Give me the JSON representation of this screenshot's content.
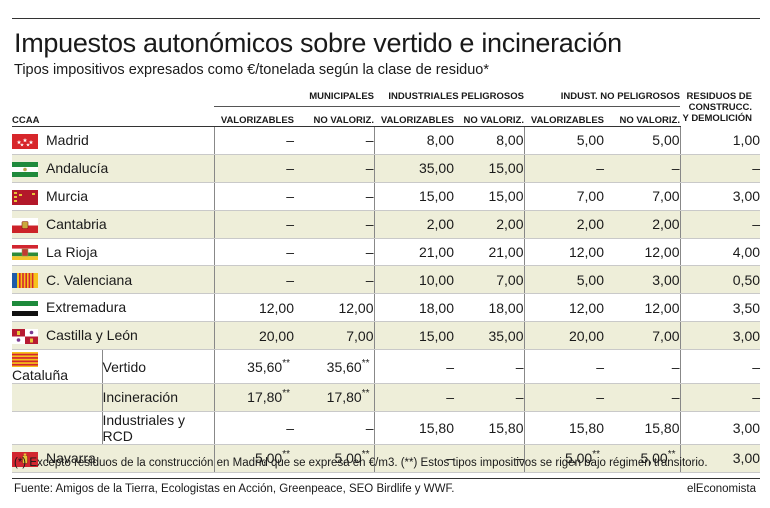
{
  "title": "Impuestos autonómicos sobre vertido e incineración",
  "subtitle": "Tipos impositivos expresados como €/tonelada según la clase de residuo*",
  "header": {
    "ccaa": "CCAA",
    "groups": {
      "municipales": "MUNICIPALES",
      "industriales_peligrosos": "INDUSTRIALES PELIGROSOS",
      "indust_no_peligrosos": "INDUST. NO PELIGROSOS",
      "residuos_l1": "RESIDUOS DE",
      "residuos_l2": "CONSTRUCC.",
      "residuos_l3": "Y DEMOLICIÓN"
    },
    "cols": {
      "valorizables": "VALORIZABLES",
      "no_valoriz": "NO VALORIZ."
    }
  },
  "rows": [
    {
      "name": "Madrid",
      "flag": "madrid",
      "values": [
        "–",
        "–",
        "8,00",
        "8,00",
        "5,00",
        "5,00",
        "1,00"
      ]
    },
    {
      "name": "Andalucía",
      "flag": "andalucia",
      "values": [
        "–",
        "–",
        "35,00",
        "15,00",
        "–",
        "–",
        "–"
      ]
    },
    {
      "name": "Murcia",
      "flag": "murcia",
      "values": [
        "–",
        "–",
        "15,00",
        "15,00",
        "7,00",
        "7,00",
        "3,00"
      ]
    },
    {
      "name": "Cantabria",
      "flag": "cantabria",
      "values": [
        "–",
        "–",
        "2,00",
        "2,00",
        "2,00",
        "2,00",
        "–"
      ]
    },
    {
      "name": "La Rioja",
      "flag": "larioja",
      "values": [
        "–",
        "–",
        "21,00",
        "21,00",
        "12,00",
        "12,00",
        "4,00"
      ]
    },
    {
      "name": "C. Valenciana",
      "flag": "valencia",
      "values": [
        "–",
        "–",
        "10,00",
        "7,00",
        "5,00",
        "3,00",
        "0,50"
      ]
    },
    {
      "name": "Extremadura",
      "flag": "extremadura",
      "values": [
        "12,00",
        "12,00",
        "18,00",
        "18,00",
        "12,00",
        "12,00",
        "3,50"
      ]
    },
    {
      "name": "Castilla y León",
      "flag": "castilla",
      "values": [
        "20,00",
        "7,00",
        "15,00",
        "35,00",
        "20,00",
        "7,00",
        "3,00"
      ]
    },
    {
      "name": "Cataluña",
      "flag": "cataluna",
      "sub": "Vertido",
      "values": [
        "35,60",
        "35,60",
        "–",
        "–",
        "–",
        "–",
        "–"
      ],
      "marks": [
        "**",
        "**",
        "",
        "",
        "",
        "",
        ""
      ]
    },
    {
      "name": "",
      "flag": "",
      "sub": "Incineración",
      "values": [
        "17,80",
        "17,80",
        "–",
        "–",
        "–",
        "–",
        "–"
      ],
      "marks": [
        "**",
        "**",
        "",
        "",
        "",
        "",
        ""
      ]
    },
    {
      "name": "",
      "flag": "",
      "sub": "Industriales y RCD",
      "values": [
        "–",
        "–",
        "15,80",
        "15,80",
        "15,80",
        "15,80",
        "3,00"
      ]
    },
    {
      "name": "Navarra",
      "flag": "navarra",
      "values": [
        "5,00",
        "5,00",
        "–",
        "–",
        "5,00",
        "5,00",
        "3,00"
      ],
      "marks": [
        "**",
        "**",
        "",
        "",
        "**",
        "**",
        ""
      ]
    }
  ],
  "note": "(*) Excepto residuos de la construcción en Madrid que se expresa en €/m3. (**) Estos tipos impositivos se rigen bajo régimen transitorio.",
  "source": "Fuente: Amigos de la Tierra, Ecologistas en Acción, Greenpeace, SEO Birdlife y WWF.",
  "brand": "elEconomista"
}
